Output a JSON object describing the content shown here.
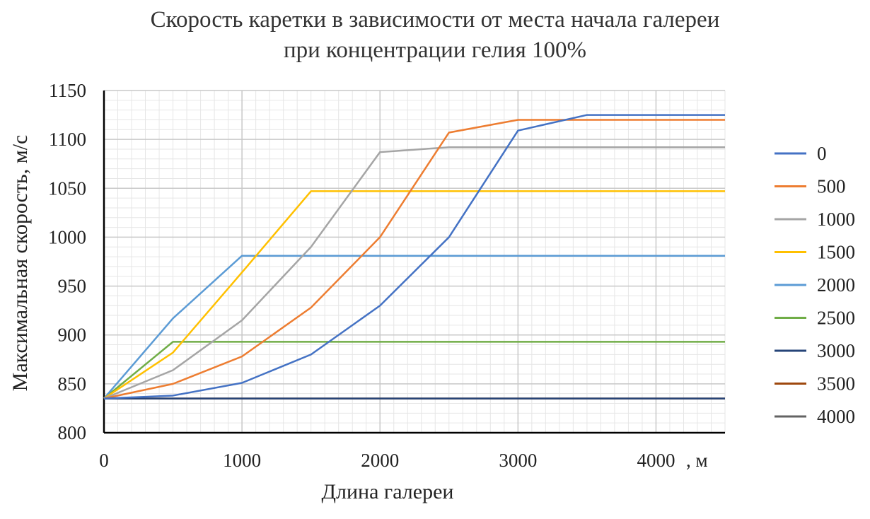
{
  "chart_data": {
    "type": "line",
    "title_line1": "Скорость каретки в зависимости от места начала галереи",
    "title_line2": "при концентрации гелия 100%",
    "xlabel": "Длина галереи",
    "ylabel": "Максимальная скорость, м/с",
    "x_unit_label": ", м",
    "xlim": [
      0,
      4500
    ],
    "ylim": [
      800,
      1150
    ],
    "x_ticks": [
      "0",
      "1000",
      "2000",
      "3000",
      "4000"
    ],
    "y_ticks": [
      "800",
      "850",
      "900",
      "950",
      "1000",
      "1050",
      "1100",
      "1150"
    ],
    "grid": true,
    "legend_position": "right",
    "x": [
      0,
      500,
      1000,
      1500,
      2000,
      2500,
      3000,
      3500,
      4000,
      4500
    ],
    "series": [
      {
        "name": "0",
        "color": "#4472C4",
        "values": [
          835,
          838,
          851,
          880,
          930,
          1000,
          1109,
          1125,
          1125,
          1125
        ]
      },
      {
        "name": "500",
        "color": "#ED7D31",
        "values": [
          835,
          850,
          878,
          928,
          1000,
          1107,
          1120,
          1120,
          1120,
          1120
        ]
      },
      {
        "name": "1000",
        "color": "#A5A5A5",
        "values": [
          835,
          864,
          915,
          990,
          1087,
          1092,
          1092,
          1092,
          1092,
          1092
        ]
      },
      {
        "name": "1500",
        "color": "#FFC000",
        "values": [
          835,
          882,
          964,
          1047,
          1047,
          1047,
          1047,
          1047,
          1047,
          1047
        ]
      },
      {
        "name": "2000",
        "color": "#5B9BD5",
        "values": [
          835,
          917,
          981,
          981,
          981,
          981,
          981,
          981,
          981,
          981
        ]
      },
      {
        "name": "2500",
        "color": "#70AD47",
        "values": [
          835,
          893,
          893,
          893,
          893,
          893,
          893,
          893,
          893,
          893
        ]
      },
      {
        "name": "3000",
        "color": "#264478",
        "values": [
          835,
          835,
          835,
          835,
          835,
          835,
          835,
          835,
          835,
          835
        ]
      },
      {
        "name": "3500",
        "color": "#9E480E",
        "values": [
          835,
          835,
          835,
          835,
          835,
          835,
          835,
          835,
          835,
          835
        ]
      },
      {
        "name": "4000",
        "color": "#636363",
        "values": [
          835,
          835,
          835,
          835,
          835,
          835,
          835,
          835,
          835,
          835
        ]
      }
    ]
  }
}
